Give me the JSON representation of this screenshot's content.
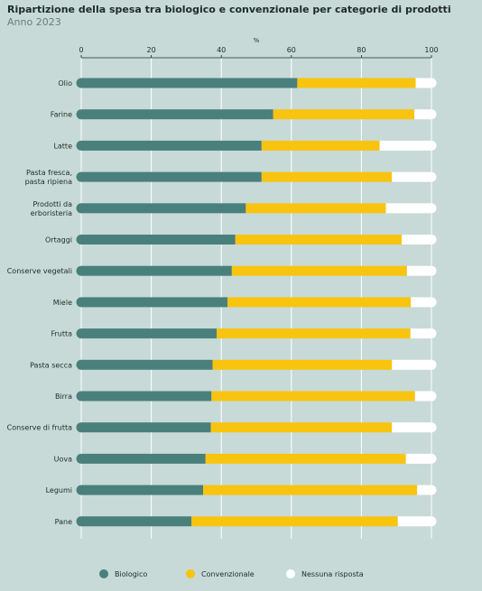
{
  "title": "Ripartizione della spesa tra biologico e convenzionale per categorie di prodotti",
  "subtitle": "Anno 2023",
  "colors": {
    "background": "#c7dad8",
    "biologico": "#4a807b",
    "convenzionale": "#f8c40f",
    "nessuna": "#ffffff",
    "grid": "#ffffff",
    "axis": "#1f2a2a"
  },
  "chart_data": {
    "type": "bar",
    "orientation": "horizontal",
    "stacked": true,
    "title": "Ripartizione della spesa tra biologico e convenzionale per categorie di prodotti",
    "subtitle": "Anno 2023",
    "unit": "%",
    "xlim": [
      0,
      100
    ],
    "xticks": [
      0,
      20,
      40,
      60,
      80,
      100
    ],
    "grid": true,
    "legend_position": "bottom",
    "categories": [
      [
        "Olio"
      ],
      [
        "Farine"
      ],
      [
        "Latte"
      ],
      [
        "Pasta fresca,",
        "pasta ripiena"
      ],
      [
        "Prodotti da",
        "erboristeria"
      ],
      [
        "Ortaggi"
      ],
      [
        "Conserve vegetali"
      ],
      [
        "Miele"
      ],
      [
        "Frutta"
      ],
      [
        "Pasta secca"
      ],
      [
        "Birra"
      ],
      [
        "Conserve di frutta"
      ],
      [
        "Uova"
      ],
      [
        "Legumi"
      ],
      [
        "Pane"
      ]
    ],
    "series": [
      {
        "name": "Biologico",
        "color": "#4a807b",
        "values": [
          61.7,
          54.8,
          51.5,
          51.5,
          47.0,
          44.0,
          43.0,
          41.8,
          38.7,
          37.5,
          37.2,
          37.0,
          35.5,
          34.8,
          31.5
        ]
      },
      {
        "name": "Convenzionale",
        "color": "#f8c40f",
        "values": [
          33.8,
          40.3,
          33.7,
          37.2,
          40.0,
          47.5,
          50.0,
          52.3,
          55.3,
          51.2,
          58.1,
          51.7,
          57.2,
          61.1,
          58.9
        ]
      },
      {
        "name": "Nessuna risposta",
        "color": "#ffffff",
        "values": [
          4.5,
          4.9,
          14.8,
          11.3,
          13.0,
          8.5,
          7.0,
          5.9,
          6.0,
          11.3,
          4.7,
          11.3,
          7.3,
          4.1,
          9.6
        ]
      }
    ]
  }
}
